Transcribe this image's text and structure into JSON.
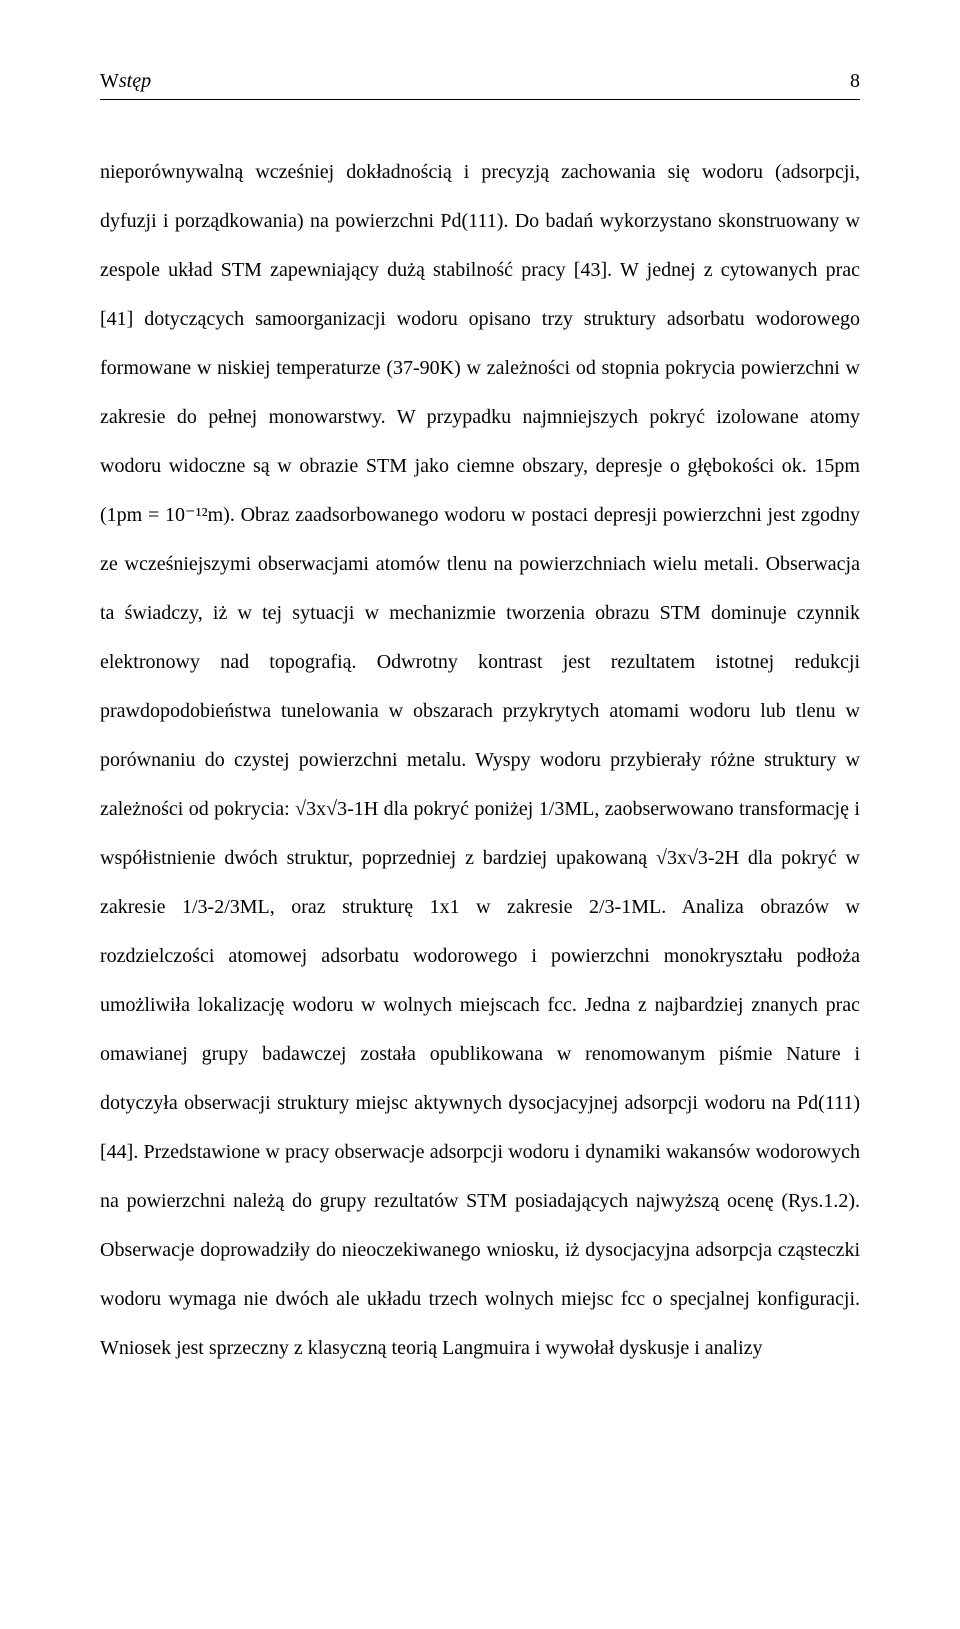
{
  "header": {
    "section_label_initial": "W",
    "section_label_rest": "stęp",
    "page_number": "8"
  },
  "body": {
    "paragraph": "nieporównywalną wcześniej dokładnością i precyzją zachowania się wodoru (adsorpcji, dyfuzji i porządkowania) na powierzchni Pd(111). Do badań wykorzystano skonstruowany w zespole układ STM zapewniający dużą stabilność pracy [43]. W jednej z cytowanych prac [41] dotyczących samoorganizacji wodoru opisano trzy struktury adsorbatu wodorowego formowane w niskiej temperaturze (37-90K) w zależności od stopnia pokrycia powierzchni w zakresie do pełnej monowarstwy. W przypadku najmniejszych pokryć izolowane atomy wodoru widoczne są w obrazie STM jako ciemne obszary, depresje o głębokości ok. 15pm (1pm = 10⁻¹²m). Obraz zaadsorbowanego wodoru w postaci depresji powierzchni jest zgodny ze wcześniejszymi obserwacjami atomów tlenu na powierzchniach wielu metali. Obserwacja ta świadczy, iż w tej sytuacji w mechanizmie tworzenia obrazu STM dominuje czynnik elektronowy nad topografią. Odwrotny kontrast jest rezultatem istotnej redukcji prawdopodobieństwa tunelowania w obszarach przykrytych atomami wodoru lub tlenu w porównaniu do czystej powierzchni metalu. Wyspy wodoru przybierały różne struktury w zależności od pokrycia: √3x√3-1H dla pokryć poniżej 1/3ML, zaobserwowano transformację i współistnienie dwóch struktur, poprzedniej z bardziej upakowaną √3x√3-2H dla pokryć w zakresie 1/3-2/3ML, oraz strukturę 1x1 w zakresie 2/3-1ML. Analiza obrazów w rozdzielczości atomowej adsorbatu wodorowego i powierzchni monokryształu podłoża umożliwiła lokalizację wodoru w wolnych miejscach fcc. Jedna z najbardziej znanych prac omawianej grupy badawczej została opublikowana w renomowanym piśmie Nature i dotyczyła obserwacji struktury miejsc aktywnych dysocjacyjnej adsorpcji wodoru na Pd(111) [44]. Przedstawione w pracy obserwacje adsorpcji wodoru i dynamiki wakansów wodorowych na powierzchni należą do grupy rezultatów STM posiadających najwyższą ocenę (Rys.1.2). Obserwacje doprowadziły do nieoczekiwanego wniosku, iż dysocjacyjna adsorpcja cząsteczki wodoru wymaga nie dwóch ale układu trzech wolnych miejsc fcc o specjalnej konfiguracji. Wniosek jest sprzeczny z klasyczną teorią Langmuira i wywołał dyskusje i analizy"
  }
}
